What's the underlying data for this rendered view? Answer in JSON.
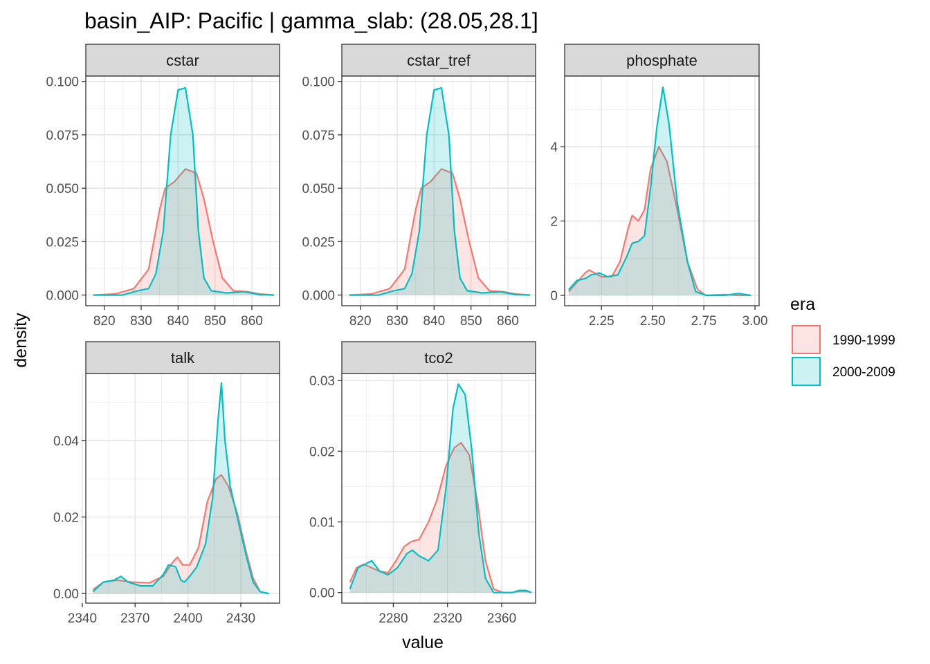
{
  "chart_data": {
    "type": "area",
    "title": "basin_AIP: Pacific | gamma_slab: (28.05,28.1]",
    "xlabel": "value",
    "ylabel": "density",
    "grid": true,
    "legend": {
      "title": "era",
      "position": "right",
      "entries": [
        {
          "name": "1990-1999",
          "color": "#F8766D"
        },
        {
          "name": "2000-2009",
          "color": "#00BFC4"
        }
      ]
    },
    "panels": [
      {
        "strip": "cstar",
        "xlim": [
          815,
          867.5
        ],
        "ylim": [
          -0.005,
          0.1025
        ],
        "xticks": [
          "820",
          "830",
          "840",
          "850",
          "860"
        ],
        "yticks": [
          "0.000",
          "0.025",
          "0.050",
          "0.075",
          "0.100"
        ],
        "series": [
          {
            "name": "1990-1999",
            "points": [
              [
                817,
                0
              ],
              [
                823,
                0.0005
              ],
              [
                828,
                0.003
              ],
              [
                832,
                0.012
              ],
              [
                835,
                0.04
              ],
              [
                836.5,
                0.05
              ],
              [
                839,
                0.053
              ],
              [
                842,
                0.059
              ],
              [
                845,
                0.057
              ],
              [
                847,
                0.045
              ],
              [
                849.5,
                0.025
              ],
              [
                852,
                0.008
              ],
              [
                855,
                0.002
              ],
              [
                859,
                0.0015
              ],
              [
                862,
                0.0005
              ],
              [
                866,
                0
              ]
            ]
          },
          {
            "name": "2000-2009",
            "points": [
              [
                817,
                0
              ],
              [
                825,
                0
              ],
              [
                829,
                0.002
              ],
              [
                832,
                0.003
              ],
              [
                834,
                0.01
              ],
              [
                836,
                0.03
              ],
              [
                838,
                0.075
              ],
              [
                840,
                0.096
              ],
              [
                842,
                0.097
              ],
              [
                844,
                0.075
              ],
              [
                845.5,
                0.03
              ],
              [
                847,
                0.008
              ],
              [
                849,
                0.002
              ],
              [
                853,
                0.001
              ],
              [
                858,
                0.0015
              ],
              [
                862,
                0.0002
              ],
              [
                866,
                0
              ]
            ]
          }
        ]
      },
      {
        "strip": "cstar_tref",
        "xlim": [
          815,
          867.5
        ],
        "ylim": [
          -0.005,
          0.1025
        ],
        "xticks": [
          "820",
          "830",
          "840",
          "850",
          "860"
        ],
        "yticks": [
          "0.000",
          "0.025",
          "0.050",
          "0.075",
          "0.100"
        ],
        "series": [
          {
            "name": "1990-1999",
            "points": [
              [
                817,
                0
              ],
              [
                823,
                0.0005
              ],
              [
                828,
                0.003
              ],
              [
                832,
                0.012
              ],
              [
                835,
                0.04
              ],
              [
                836.5,
                0.05
              ],
              [
                839,
                0.053
              ],
              [
                842,
                0.059
              ],
              [
                845,
                0.057
              ],
              [
                847,
                0.045
              ],
              [
                849.5,
                0.025
              ],
              [
                852,
                0.008
              ],
              [
                855,
                0.002
              ],
              [
                859,
                0.0015
              ],
              [
                862,
                0.0005
              ],
              [
                866,
                0
              ]
            ]
          },
          {
            "name": "2000-2009",
            "points": [
              [
                817,
                0
              ],
              [
                825,
                0
              ],
              [
                829,
                0.002
              ],
              [
                832,
                0.003
              ],
              [
                834,
                0.01
              ],
              [
                836,
                0.03
              ],
              [
                838,
                0.075
              ],
              [
                840,
                0.096
              ],
              [
                842,
                0.097
              ],
              [
                844,
                0.075
              ],
              [
                845.5,
                0.03
              ],
              [
                847,
                0.008
              ],
              [
                849,
                0.002
              ],
              [
                853,
                0.001
              ],
              [
                858,
                0.0015
              ],
              [
                862,
                0.0002
              ],
              [
                866,
                0
              ]
            ]
          }
        ]
      },
      {
        "strip": "phosphate",
        "xlim": [
          2.07,
          3.02
        ],
        "ylim": [
          -0.28,
          5.9
        ],
        "xticks": [
          "2.25",
          "2.50",
          "2.75",
          "3.00"
        ],
        "yticks": [
          "0",
          "2",
          "4"
        ],
        "series": [
          {
            "name": "1990-1999",
            "points": [
              [
                2.09,
                0.1
              ],
              [
                2.13,
                0.35
              ],
              [
                2.17,
                0.6
              ],
              [
                2.19,
                0.68
              ],
              [
                2.21,
                0.62
              ],
              [
                2.25,
                0.5
              ],
              [
                2.3,
                0.5
              ],
              [
                2.34,
                0.9
              ],
              [
                2.38,
                1.8
              ],
              [
                2.4,
                2.15
              ],
              [
                2.43,
                2.0
              ],
              [
                2.46,
                2.3
              ],
              [
                2.49,
                3.4
              ],
              [
                2.53,
                4.0
              ],
              [
                2.57,
                3.6
              ],
              [
                2.62,
                2.3
              ],
              [
                2.67,
                0.9
              ],
              [
                2.72,
                0.15
              ],
              [
                2.76,
                0.0
              ],
              [
                2.85,
                0.02
              ],
              [
                2.92,
                0.0
              ],
              [
                2.98,
                0.0
              ]
            ]
          },
          {
            "name": "2000-2009",
            "points": [
              [
                2.09,
                0.15
              ],
              [
                2.13,
                0.4
              ],
              [
                2.17,
                0.45
              ],
              [
                2.2,
                0.55
              ],
              [
                2.24,
                0.6
              ],
              [
                2.28,
                0.5
              ],
              [
                2.33,
                0.55
              ],
              [
                2.37,
                1.0
              ],
              [
                2.4,
                1.4
              ],
              [
                2.43,
                1.45
              ],
              [
                2.46,
                1.6
              ],
              [
                2.49,
                2.9
              ],
              [
                2.52,
                4.5
              ],
              [
                2.55,
                5.6
              ],
              [
                2.58,
                4.6
              ],
              [
                2.62,
                2.5
              ],
              [
                2.67,
                0.9
              ],
              [
                2.71,
                0.1
              ],
              [
                2.76,
                0.0
              ],
              [
                2.85,
                0.0
              ],
              [
                2.92,
                0.05
              ],
              [
                2.98,
                0.0
              ]
            ]
          }
        ]
      },
      {
        "strip": "talk",
        "xlim": [
          2342,
          2452
        ],
        "ylim": [
          -0.0025,
          0.0575
        ],
        "xticks": [
          "2340",
          "2370",
          "2400",
          "2430"
        ],
        "yticks": [
          "0.00",
          "0.02",
          "0.04"
        ],
        "series": [
          {
            "name": "1990-1999",
            "points": [
              [
                2346,
                0.001
              ],
              [
                2352,
                0.003
              ],
              [
                2360,
                0.0035
              ],
              [
                2368,
                0.003
              ],
              [
                2378,
                0.0028
              ],
              [
                2386,
                0.0045
              ],
              [
                2391,
                0.008
              ],
              [
                2394,
                0.0095
              ],
              [
                2397,
                0.0075
              ],
              [
                2401,
                0.0075
              ],
              [
                2406,
                0.012
              ],
              [
                2411,
                0.024
              ],
              [
                2416,
                0.03
              ],
              [
                2419,
                0.031
              ],
              [
                2423,
                0.028
              ],
              [
                2428,
                0.021
              ],
              [
                2433,
                0.011
              ],
              [
                2437,
                0.004
              ],
              [
                2441,
                0.0005
              ],
              [
                2446,
                0
              ]
            ]
          },
          {
            "name": "2000-2009",
            "points": [
              [
                2346,
                0.0005
              ],
              [
                2352,
                0.003
              ],
              [
                2358,
                0.0035
              ],
              [
                2362,
                0.0045
              ],
              [
                2366,
                0.003
              ],
              [
                2373,
                0.002
              ],
              [
                2380,
                0.002
              ],
              [
                2386,
                0.005
              ],
              [
                2389,
                0.0075
              ],
              [
                2393,
                0.007
              ],
              [
                2396,
                0.0035
              ],
              [
                2398,
                0.003
              ],
              [
                2401,
                0.0045
              ],
              [
                2405,
                0.007
              ],
              [
                2410,
                0.013
              ],
              [
                2414,
                0.025
              ],
              [
                2417,
                0.045
              ],
              [
                2419,
                0.055
              ],
              [
                2421,
                0.04
              ],
              [
                2424,
                0.028
              ],
              [
                2428,
                0.02
              ],
              [
                2433,
                0.01
              ],
              [
                2437,
                0.003
              ],
              [
                2441,
                0.0005
              ],
              [
                2446,
                0
              ]
            ]
          }
        ]
      },
      {
        "strip": "tco2",
        "xlim": [
          2242,
          2385
        ],
        "ylim": [
          -0.0015,
          0.031
        ],
        "xticks": [
          "2280",
          "2320",
          "2360"
        ],
        "yticks": [
          "0.00",
          "0.01",
          "0.02",
          "0.03"
        ],
        "series": [
          {
            "name": "1990-1999",
            "points": [
              [
                2248,
                0.0015
              ],
              [
                2253,
                0.0035
              ],
              [
                2258,
                0.004
              ],
              [
                2264,
                0.0035
              ],
              [
                2270,
                0.003
              ],
              [
                2276,
                0.0028
              ],
              [
                2282,
                0.0045
              ],
              [
                2288,
                0.0065
              ],
              [
                2293,
                0.0072
              ],
              [
                2299,
                0.0075
              ],
              [
                2306,
                0.01
              ],
              [
                2312,
                0.013
              ],
              [
                2319,
                0.018
              ],
              [
                2325,
                0.0205
              ],
              [
                2330,
                0.0212
              ],
              [
                2336,
                0.0195
              ],
              [
                2342,
                0.013
              ],
              [
                2348,
                0.0045
              ],
              [
                2354,
                0.0005
              ],
              [
                2361,
                0.0
              ],
              [
                2368,
                0.0
              ],
              [
                2373,
                0.0002
              ],
              [
                2378,
                0.0002
              ],
              [
                2382,
                0.0
              ]
            ]
          },
          {
            "name": "2000-2009",
            "points": [
              [
                2248,
                0.0005
              ],
              [
                2254,
                0.0035
              ],
              [
                2259,
                0.004
              ],
              [
                2264,
                0.0045
              ],
              [
                2270,
                0.003
              ],
              [
                2276,
                0.0025
              ],
              [
                2283,
                0.0035
              ],
              [
                2290,
                0.0055
              ],
              [
                2294,
                0.006
              ],
              [
                2299,
                0.0052
              ],
              [
                2306,
                0.0045
              ],
              [
                2313,
                0.006
              ],
              [
                2319,
                0.015
              ],
              [
                2324,
                0.026
              ],
              [
                2328,
                0.0295
              ],
              [
                2333,
                0.028
              ],
              [
                2338,
                0.02
              ],
              [
                2343,
                0.0085
              ],
              [
                2348,
                0.002
              ],
              [
                2354,
                0.0
              ],
              [
                2361,
                0.0
              ],
              [
                2368,
                0.0
              ],
              [
                2373,
                0.0003
              ],
              [
                2378,
                0.0003
              ],
              [
                2382,
                0.0
              ]
            ]
          }
        ]
      }
    ]
  }
}
